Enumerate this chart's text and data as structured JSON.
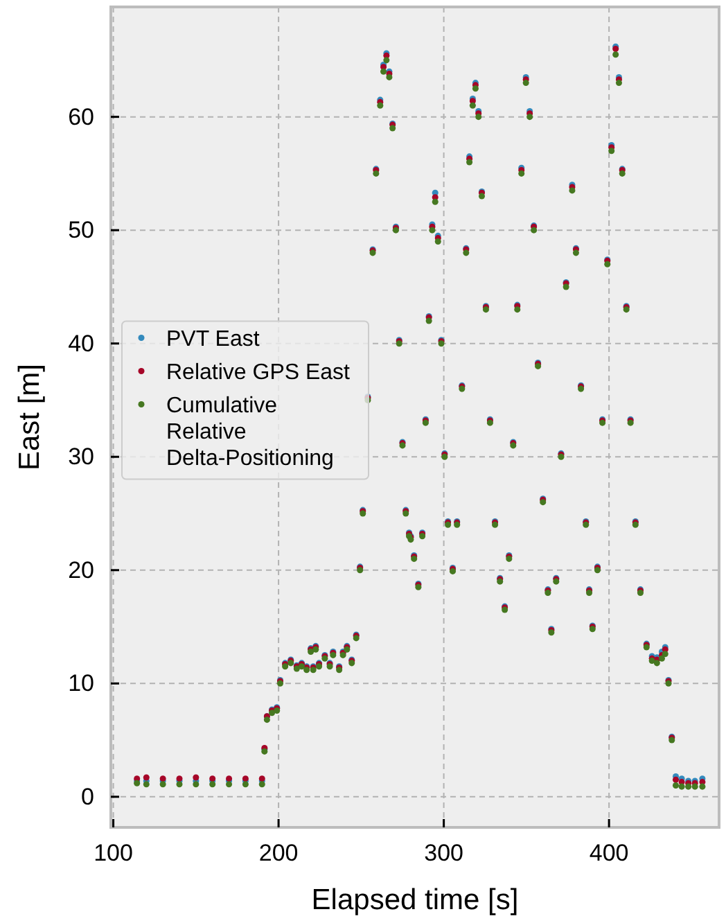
{
  "chart_data": {
    "type": "scatter",
    "xlabel": "Elapsed time [s]",
    "ylabel": "East [m]",
    "xlim": [
      98.5,
      466.6
    ],
    "ylim": [
      -2.7,
      69.7
    ],
    "xticks": [
      100,
      200,
      300,
      400
    ],
    "yticks": [
      0,
      10,
      20,
      30,
      40,
      50,
      60
    ],
    "grid": true,
    "legend": "left",
    "marker": "circle",
    "x": [
      114.3,
      120,
      130,
      140,
      150,
      160,
      170,
      180,
      190,
      191.5,
      193,
      196,
      199,
      201,
      204,
      207.4,
      211,
      214,
      217,
      219.5,
      221,
      222.5,
      224.5,
      228,
      231,
      233,
      236.7,
      239,
      241.4,
      244.3,
      247,
      249.3,
      251,
      254,
      257,
      259,
      261.5,
      263.5,
      265.3,
      267,
      269,
      271,
      273,
      275,
      277,
      279,
      280,
      282,
      284.6,
      287,
      289,
      291,
      293,
      294.8,
      296.5,
      298.5,
      300.5,
      302.5,
      305.4,
      308,
      311,
      313.5,
      315.5,
      317.5,
      319.2,
      321,
      323,
      325.5,
      328,
      331,
      334,
      336.9,
      339.5,
      342,
      344.5,
      347,
      349.7,
      352,
      354.5,
      357,
      360,
      363,
      365.1,
      368,
      371,
      374,
      377.7,
      380,
      383,
      386,
      388,
      390,
      393,
      396,
      399,
      401.5,
      404,
      406,
      408,
      410.5,
      413,
      416,
      419,
      422.7,
      426,
      429,
      432,
      434,
      436,
      438,
      440.4,
      444,
      448,
      452,
      456.5
    ],
    "series": [
      {
        "name": "PVT East",
        "color": "#348abd",
        "values": [
          1.4,
          1.4,
          1.4,
          1.4,
          1.4,
          1.4,
          1.4,
          1.4,
          1.4,
          4.2,
          7.1,
          7.7,
          7.9,
          10.3,
          11.8,
          12.1,
          11.6,
          11.8,
          11.5,
          13.1,
          11.5,
          13.3,
          11.8,
          12.5,
          11.8,
          12.8,
          11.5,
          12.8,
          13.3,
          12.1,
          14.3,
          20.3,
          25.3,
          35.3,
          48.3,
          55.4,
          61.5,
          64.6,
          65.6,
          64,
          59.4,
          50.3,
          40.3,
          31.3,
          25.3,
          23.3,
          23,
          21.3,
          18.8,
          23.3,
          33.3,
          42.4,
          50.5,
          53.3,
          49.5,
          40.3,
          30.3,
          24.3,
          20.2,
          24.3,
          36.3,
          48.4,
          56.5,
          61.6,
          63,
          60.5,
          53.4,
          43.3,
          33.3,
          24.3,
          19.3,
          16.8,
          21.3,
          31.3,
          43.4,
          55.5,
          63.5,
          60.5,
          50.4,
          38.3,
          26.3,
          18.3,
          14.8,
          19.3,
          30.3,
          45.4,
          54,
          48.4,
          36.3,
          24.3,
          18.3,
          15.1,
          20.3,
          33.3,
          47.4,
          57.5,
          66.2,
          63.5,
          55.4,
          43.3,
          33.3,
          24.3,
          18.3,
          13.5,
          12.4,
          12.3,
          12.8,
          13.2,
          10.3,
          5.3,
          1.8,
          1.6,
          1.4,
          1.4,
          1.6
        ]
      },
      {
        "name": "Relative GPS East",
        "color": "#a60628",
        "values": [
          1.6,
          1.7,
          1.6,
          1.6,
          1.7,
          1.6,
          1.6,
          1.6,
          1.6,
          4.3,
          7.1,
          7.6,
          7.8,
          10.2,
          11.7,
          12,
          11.5,
          11.7,
          11.4,
          13,
          11.4,
          13.2,
          11.7,
          12.4,
          11.7,
          12.7,
          11.4,
          12.7,
          13.2,
          12,
          14.2,
          20.2,
          25.2,
          35.2,
          48.2,
          55.3,
          61.3,
          64.4,
          65.4,
          63.8,
          59.3,
          50.2,
          40.2,
          31.2,
          25.2,
          23.2,
          22.9,
          21.2,
          18.7,
          23.2,
          33.2,
          42.3,
          50.3,
          52.9,
          49.3,
          40.2,
          30.2,
          24.2,
          20.1,
          24.2,
          36.2,
          48.3,
          56.3,
          61.4,
          62.8,
          60.3,
          53.3,
          43.2,
          33.2,
          24.2,
          19.2,
          16.7,
          21.2,
          31.2,
          43.3,
          55.3,
          63.3,
          60.3,
          50.3,
          38.2,
          26.2,
          18.2,
          14.7,
          19.2,
          30.2,
          45.3,
          53.8,
          48.3,
          36.2,
          24.2,
          18.2,
          15,
          20.2,
          33.2,
          47.3,
          57.3,
          66,
          63.3,
          55.3,
          43.2,
          33.2,
          24.2,
          18.2,
          13.4,
          12.2,
          12.1,
          12.5,
          13,
          10.2,
          5.2,
          1.5,
          1.3,
          1.2,
          1.2,
          1.3
        ]
      },
      {
        "name": "Cumulative Relative Delta-Positioning",
        "color": "#467821",
        "values": [
          1.2,
          1.1,
          1.1,
          1.1,
          1.1,
          1.1,
          1.1,
          1.1,
          1.1,
          4,
          6.8,
          7.4,
          7.6,
          10,
          11.5,
          11.8,
          11.3,
          11.5,
          11.2,
          12.8,
          11.2,
          13,
          11.5,
          12.2,
          11.5,
          12.5,
          11.2,
          12.5,
          13,
          11.8,
          14,
          20,
          25,
          35,
          48,
          55,
          61,
          64,
          65,
          63.5,
          59,
          50,
          40,
          31,
          25,
          23,
          22.7,
          21,
          18.5,
          23,
          33,
          42,
          50,
          52.5,
          49,
          40,
          30,
          24,
          19.9,
          24,
          36,
          48,
          56,
          61,
          62.5,
          60,
          53,
          43,
          33,
          24,
          19,
          16.5,
          21,
          31,
          43,
          55,
          63,
          60,
          50,
          38,
          26,
          18,
          14.5,
          19,
          30,
          45,
          53.5,
          48,
          36,
          24,
          18,
          14.8,
          20,
          33,
          47,
          57,
          65.5,
          63,
          55,
          43,
          33,
          24,
          18,
          13.2,
          12,
          11.8,
          12.2,
          12.6,
          10,
          5,
          1,
          0.9,
          0.9,
          0.9,
          0.9
        ]
      }
    ]
  }
}
